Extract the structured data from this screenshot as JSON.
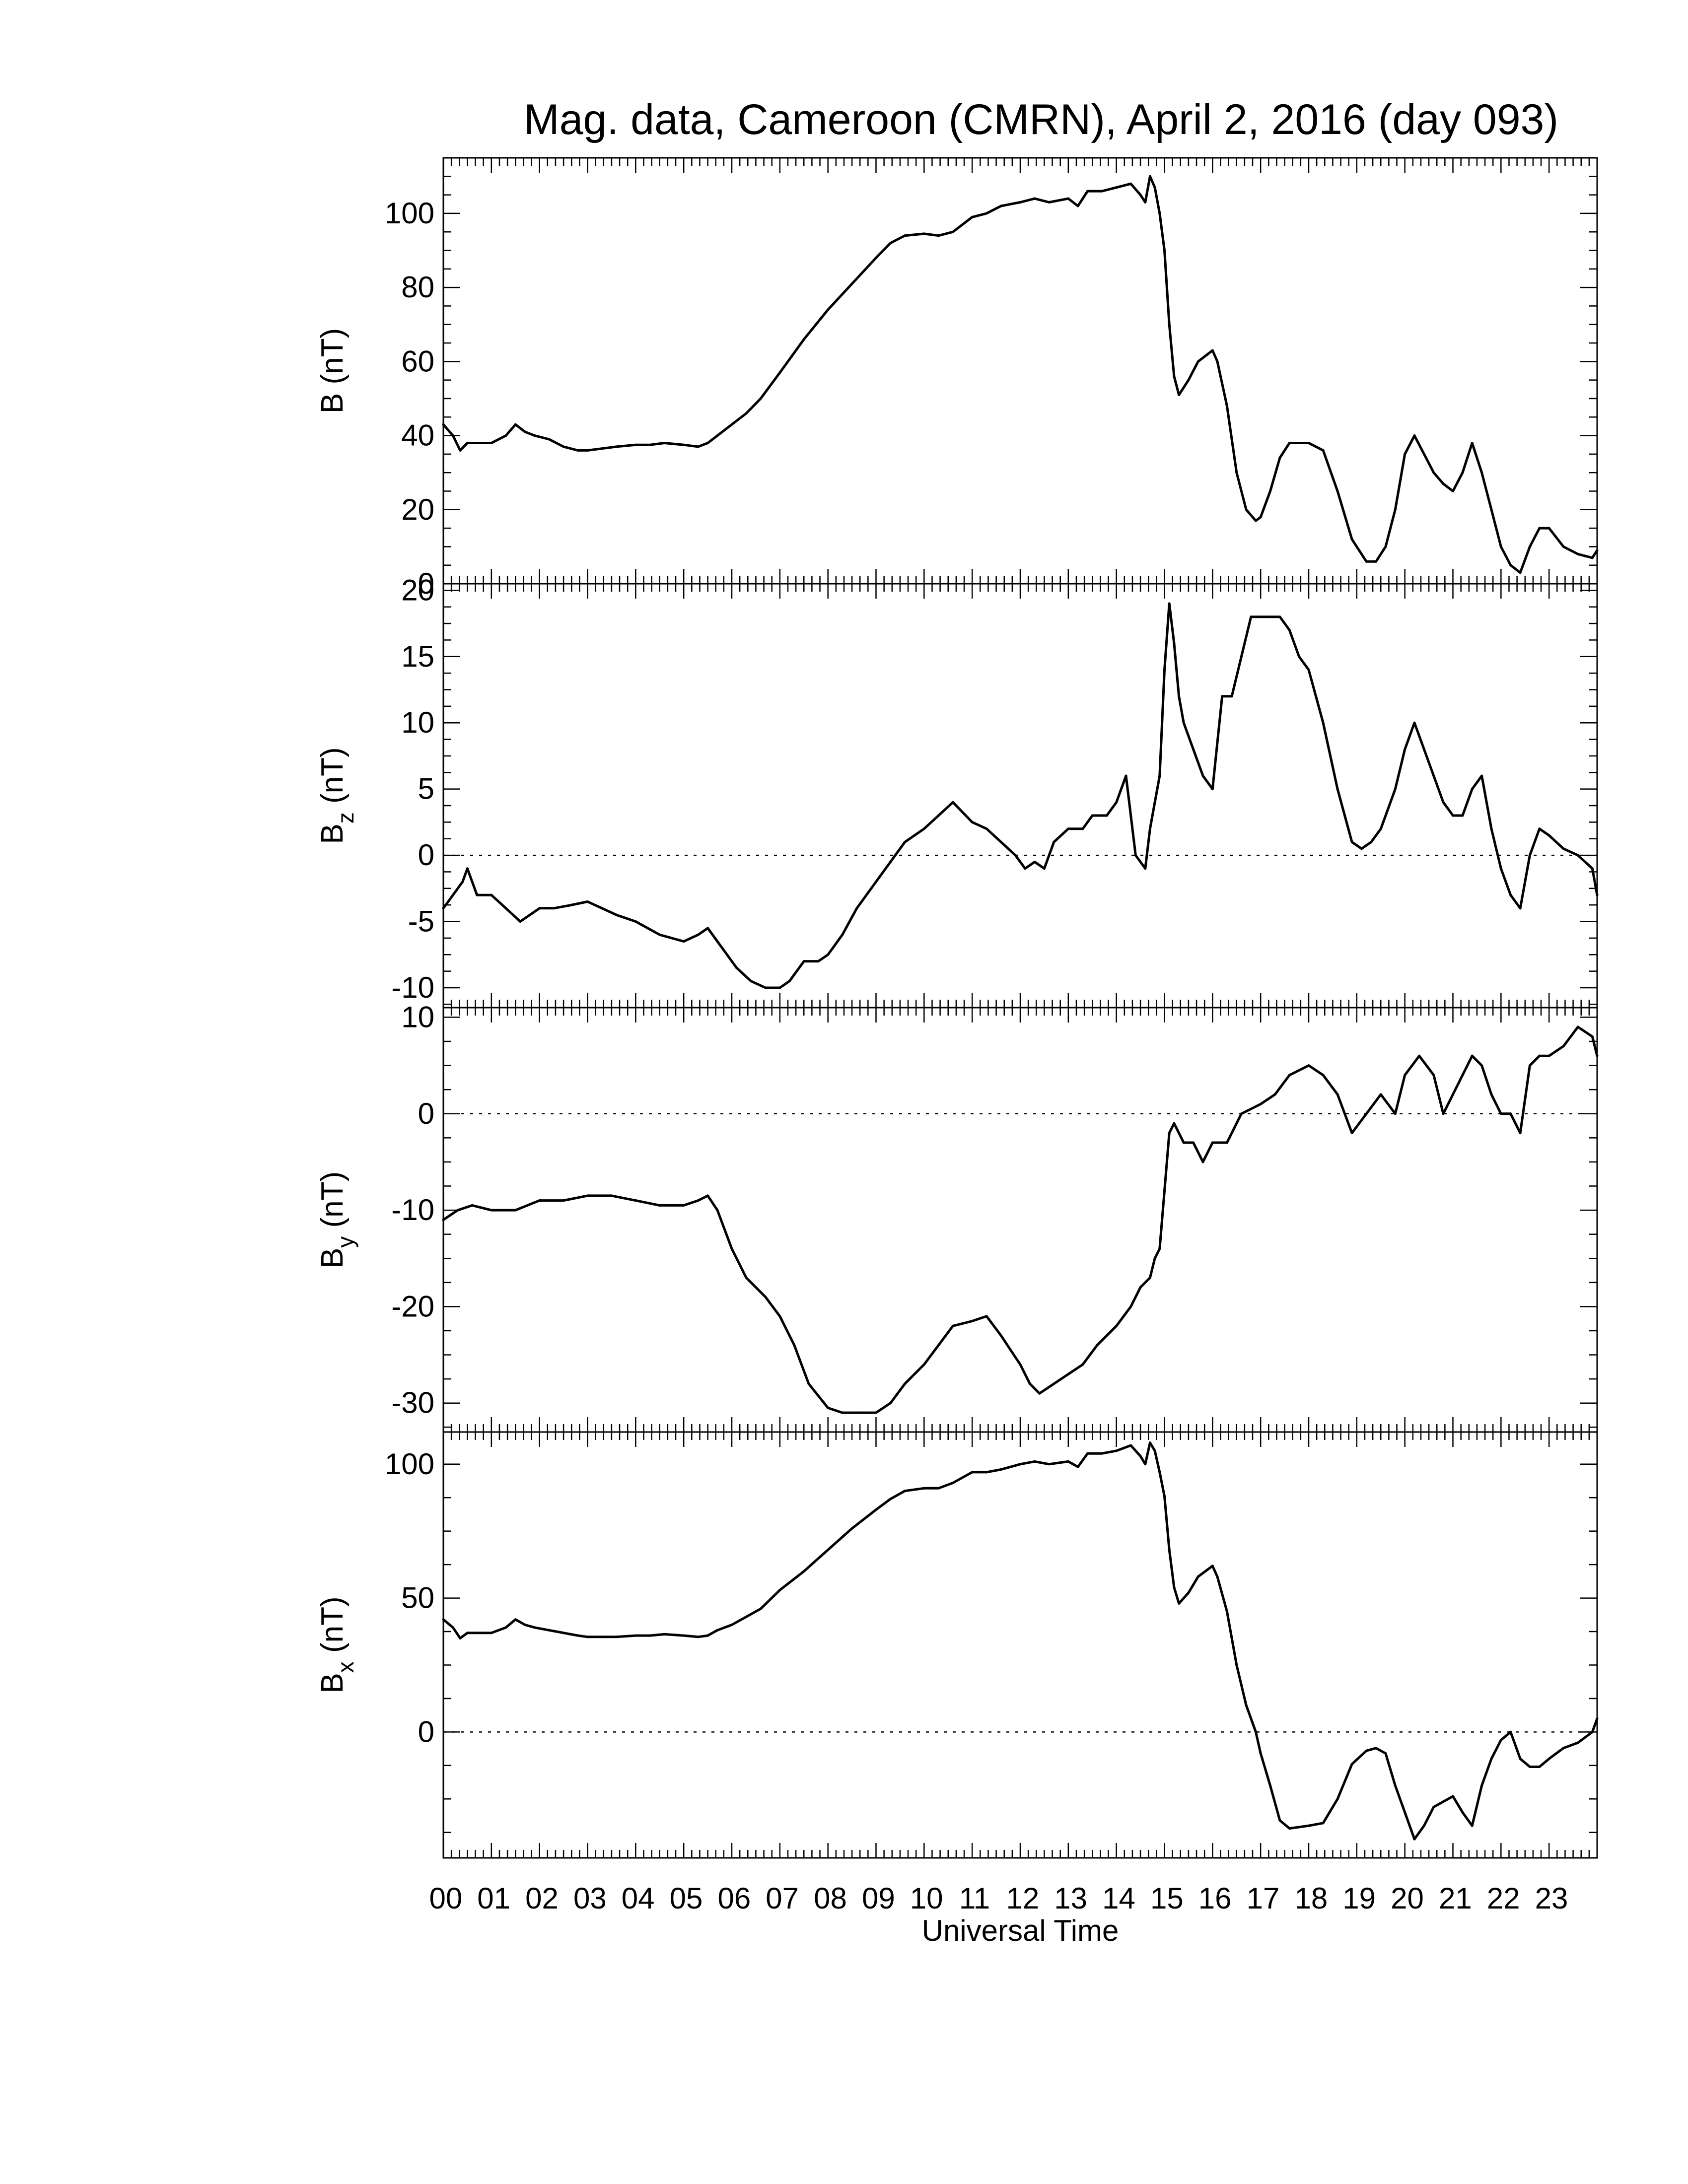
{
  "title": "Mag. data, Cameroon (CMRN), April 2, 2016 (day 093)",
  "xlabel": "Universal Time",
  "x_tick_labels": [
    "00",
    "01",
    "02",
    "03",
    "04",
    "05",
    "06",
    "07",
    "08",
    "09",
    "10",
    "11",
    "12",
    "13",
    "14",
    "15",
    "16",
    "17",
    "18",
    "19",
    "20",
    "21",
    "22",
    "23"
  ],
  "colors": {
    "line": "#000000",
    "background": "#ffffff",
    "zero_line": "#000000"
  },
  "chart_data": [
    {
      "type": "line",
      "ylabel": "B (nT)",
      "ylabel_main": "B",
      "ylabel_sub": "",
      "ylabel_unit": " (nT)",
      "ylim": [
        0,
        115
      ],
      "yticks": [
        0,
        20,
        40,
        60,
        80,
        100
      ],
      "ytick_labels": [
        "0",
        "20",
        "40",
        "60",
        "80",
        "100"
      ],
      "zero_line": false,
      "x": [
        0,
        0.2,
        0.35,
        0.5,
        0.7,
        1.0,
        1.3,
        1.5,
        1.7,
        1.9,
        2.2,
        2.5,
        2.8,
        3.0,
        3.3,
        3.6,
        4.0,
        4.3,
        4.6,
        5.0,
        5.3,
        5.5,
        5.7,
        6.0,
        6.3,
        6.6,
        7.0,
        7.5,
        8.0,
        8.5,
        9.0,
        9.3,
        9.6,
        10.0,
        10.3,
        10.6,
        11.0,
        11.3,
        11.6,
        12.0,
        12.3,
        12.6,
        13.0,
        13.2,
        13.4,
        13.7,
        14.0,
        14.3,
        14.5,
        14.6,
        14.7,
        14.8,
        14.9,
        15.0,
        15.1,
        15.2,
        15.3,
        15.5,
        15.7,
        16.0,
        16.1,
        16.3,
        16.5,
        16.7,
        16.9,
        17.0,
        17.2,
        17.4,
        17.6,
        18.0,
        18.3,
        18.6,
        18.9,
        19.2,
        19.4,
        19.6,
        19.8,
        20.0,
        20.2,
        20.4,
        20.6,
        20.8,
        21.0,
        21.2,
        21.4,
        21.6,
        21.8,
        22.0,
        22.2,
        22.4,
        22.6,
        22.8,
        23.0,
        23.3,
        23.6,
        23.9,
        24.0
      ],
      "values": [
        43,
        40,
        36,
        38,
        38,
        38,
        40,
        43,
        41,
        40,
        39,
        37,
        36,
        36,
        36.5,
        37,
        37.5,
        37.5,
        38,
        37.5,
        37,
        38,
        40,
        43,
        46,
        50,
        57,
        66,
        74,
        81,
        88,
        92,
        94,
        94.5,
        94,
        95,
        99,
        100,
        102,
        103,
        104,
        103,
        104,
        102,
        106,
        106,
        107,
        108,
        105,
        103,
        110,
        107,
        100,
        90,
        70,
        56,
        51,
        55,
        60,
        63,
        60,
        48,
        30,
        20,
        17,
        18,
        25,
        34,
        38,
        38,
        36,
        25,
        12,
        6,
        6,
        10,
        20,
        35,
        40,
        35,
        30,
        27,
        25,
        30,
        38,
        30,
        20,
        10,
        5,
        3,
        10,
        15,
        15,
        10,
        8,
        7,
        9
      ]
    },
    {
      "type": "line",
      "ylabel": "Bz (nT)",
      "ylabel_main": "B",
      "ylabel_sub": "z",
      "ylabel_unit": " (nT)",
      "ylim": [
        -11.5,
        20.5
      ],
      "yticks": [
        -10,
        -5,
        0,
        5,
        10,
        15,
        20
      ],
      "ytick_labels": [
        "-10",
        "-5",
        "0",
        "5",
        "10",
        "15",
        "20"
      ],
      "zero_line": true,
      "x": [
        0,
        0.2,
        0.4,
        0.5,
        0.7,
        1.0,
        1.3,
        1.6,
        1.8,
        2.0,
        2.3,
        2.6,
        3.0,
        3.3,
        3.6,
        4.0,
        4.5,
        5.0,
        5.3,
        5.5,
        5.8,
        6.1,
        6.4,
        6.7,
        7.0,
        7.2,
        7.5,
        7.8,
        8.0,
        8.3,
        8.6,
        9.0,
        9.3,
        9.6,
        10.0,
        10.3,
        10.6,
        11.0,
        11.3,
        11.6,
        11.9,
        12.1,
        12.3,
        12.5,
        12.7,
        13.0,
        13.3,
        13.5,
        13.8,
        14.0,
        14.2,
        14.4,
        14.6,
        14.7,
        14.8,
        14.9,
        15.0,
        15.1,
        15.2,
        15.3,
        15.4,
        15.6,
        15.8,
        16.0,
        16.2,
        16.4,
        16.6,
        16.8,
        17.0,
        17.2,
        17.4,
        17.6,
        17.8,
        18.0,
        18.3,
        18.6,
        18.9,
        19.1,
        19.3,
        19.5,
        19.8,
        20.0,
        20.2,
        20.5,
        20.8,
        21.0,
        21.2,
        21.4,
        21.6,
        21.8,
        22.0,
        22.2,
        22.4,
        22.6,
        22.8,
        23.0,
        23.3,
        23.6,
        23.9,
        24.0
      ],
      "values": [
        -4,
        -3,
        -2,
        -1,
        -3,
        -3,
        -4,
        -5,
        -4.5,
        -4,
        -4,
        -3.8,
        -3.5,
        -4,
        -4.5,
        -5,
        -6,
        -6.5,
        -6,
        -5.5,
        -7,
        -8.5,
        -9.5,
        -10,
        -10,
        -9.5,
        -8,
        -8,
        -7.5,
        -6,
        -4,
        -2,
        -0.5,
        1,
        2,
        3,
        4,
        2.5,
        2,
        1,
        0,
        -1,
        -0.5,
        -1,
        1,
        2,
        2,
        3,
        3,
        4,
        6,
        0,
        -1,
        2,
        4,
        6,
        14,
        19,
        16,
        12,
        10,
        8,
        6,
        5,
        12,
        12,
        15,
        18,
        18,
        18,
        18,
        17,
        15,
        14,
        10,
        5,
        1,
        0.5,
        1,
        2,
        5,
        8,
        10,
        7,
        4,
        3,
        3,
        5,
        6,
        2,
        -1,
        -3,
        -4,
        0,
        2,
        1.5,
        0.5,
        0,
        -1,
        -3
      ]
    },
    {
      "type": "line",
      "ylabel": "By (nT)",
      "ylabel_main": "B",
      "ylabel_sub": "y",
      "ylabel_unit": " (nT)",
      "ylim": [
        -33,
        11
      ],
      "yticks": [
        -30,
        -20,
        -10,
        0,
        10
      ],
      "ytick_labels": [
        "-30",
        "-20",
        "-10",
        "0",
        "10"
      ],
      "zero_line": true,
      "x": [
        0,
        0.3,
        0.6,
        1.0,
        1.5,
        2.0,
        2.5,
        3.0,
        3.5,
        4.0,
        4.5,
        5.0,
        5.3,
        5.5,
        5.7,
        6.0,
        6.3,
        6.7,
        7.0,
        7.3,
        7.6,
        8.0,
        8.3,
        8.6,
        9.0,
        9.3,
        9.6,
        10.0,
        10.3,
        10.6,
        11.0,
        11.3,
        11.6,
        12.0,
        12.2,
        12.4,
        12.7,
        13.0,
        13.3,
        13.6,
        14.0,
        14.3,
        14.5,
        14.7,
        14.8,
        14.9,
        15.0,
        15.1,
        15.2,
        15.4,
        15.6,
        15.8,
        16.0,
        16.3,
        16.6,
        17.0,
        17.3,
        17.6,
        18.0,
        18.3,
        18.6,
        18.9,
        19.2,
        19.5,
        19.8,
        20.0,
        20.3,
        20.6,
        20.8,
        21.0,
        21.2,
        21.4,
        21.6,
        21.8,
        22.0,
        22.2,
        22.4,
        22.6,
        22.8,
        23.0,
        23.3,
        23.6,
        23.9,
        24.0
      ],
      "values": [
        -11,
        -10,
        -9.5,
        -10,
        -10,
        -9,
        -9,
        -8.5,
        -8.5,
        -9,
        -9.5,
        -9.5,
        -9,
        -8.5,
        -10,
        -14,
        -17,
        -19,
        -21,
        -24,
        -28,
        -30.5,
        -31,
        -31,
        -31,
        -30,
        -28,
        -26,
        -24,
        -22,
        -21.5,
        -21,
        -23,
        -26,
        -28,
        -29,
        -28,
        -27,
        -26,
        -24,
        -22,
        -20,
        -18,
        -17,
        -15,
        -14,
        -8,
        -2,
        -1,
        -3,
        -3,
        -5,
        -3,
        -3,
        0,
        1,
        2,
        4,
        5,
        4,
        2,
        -2,
        0,
        2,
        0,
        4,
        6,
        4,
        0,
        2,
        4,
        6,
        5,
        2,
        0,
        0,
        -2,
        5,
        6,
        6,
        7,
        9,
        8,
        6
      ]
    },
    {
      "type": "line",
      "ylabel": "Bx (nT)",
      "ylabel_main": "B",
      "ylabel_sub": "x",
      "ylabel_unit": " (nT)",
      "ylim": [
        -47,
        112
      ],
      "yticks": [
        0,
        50,
        100
      ],
      "ytick_labels": [
        "0",
        "50",
        "100"
      ],
      "zero_line": true,
      "x": [
        0,
        0.2,
        0.35,
        0.5,
        0.7,
        1.0,
        1.3,
        1.5,
        1.7,
        1.9,
        2.2,
        2.5,
        2.8,
        3.0,
        3.3,
        3.6,
        4.0,
        4.3,
        4.6,
        5.0,
        5.3,
        5.5,
        5.7,
        6.0,
        6.3,
        6.6,
        7.0,
        7.5,
        8.0,
        8.5,
        9.0,
        9.3,
        9.6,
        10.0,
        10.3,
        10.6,
        11.0,
        11.3,
        11.6,
        12.0,
        12.3,
        12.6,
        13.0,
        13.2,
        13.4,
        13.7,
        14.0,
        14.3,
        14.5,
        14.6,
        14.7,
        14.8,
        14.9,
        15.0,
        15.1,
        15.2,
        15.3,
        15.5,
        15.7,
        16.0,
        16.1,
        16.3,
        16.5,
        16.7,
        16.9,
        17.0,
        17.2,
        17.4,
        17.6,
        18.0,
        18.3,
        18.6,
        18.9,
        19.2,
        19.4,
        19.6,
        19.8,
        20.0,
        20.2,
        20.4,
        20.6,
        20.8,
        21.0,
        21.2,
        21.4,
        21.6,
        21.8,
        22.0,
        22.2,
        22.4,
        22.6,
        22.8,
        23.0,
        23.3,
        23.6,
        23.9,
        24.0
      ],
      "values": [
        42,
        39,
        35,
        37,
        37,
        37,
        39,
        42,
        40,
        39,
        38,
        37,
        36,
        35.5,
        35.5,
        35.5,
        36,
        36,
        36.5,
        36,
        35.5,
        36,
        38,
        40,
        43,
        46,
        53,
        60,
        68,
        76,
        83,
        87,
        90,
        91,
        91,
        93,
        97,
        97,
        98,
        100,
        101,
        100,
        101,
        99,
        104,
        104,
        105,
        107,
        103,
        100,
        108,
        105,
        97,
        88,
        68,
        54,
        48,
        52,
        58,
        62,
        58,
        45,
        25,
        10,
        0,
        -8,
        -20,
        -33,
        -36,
        -35,
        -34,
        -25,
        -12,
        -7,
        -6,
        -8,
        -20,
        -30,
        -40,
        -35,
        -28,
        -26,
        -24,
        -30,
        -35,
        -20,
        -10,
        -3,
        0,
        -10,
        -13,
        -13,
        -10,
        -6,
        -4,
        0,
        5
      ]
    }
  ]
}
